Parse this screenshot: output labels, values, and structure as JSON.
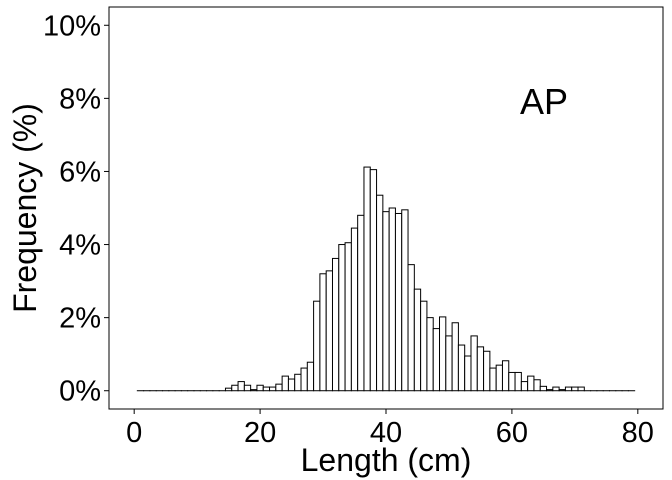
{
  "chart_data": {
    "type": "bar",
    "xlabel": "Length (cm)",
    "ylabel": "Frequency (%)",
    "annotation": "AP",
    "xlim": [
      -4,
      84
    ],
    "ylim": [
      -0.5,
      10.5
    ],
    "xticks": [
      0,
      20,
      40,
      60,
      80
    ],
    "xtick_labels": [
      "0",
      "20",
      "40",
      "60",
      "80"
    ],
    "yticks": [
      0,
      2,
      4,
      6,
      8,
      10
    ],
    "ytick_labels": [
      "0%",
      "2%",
      "4%",
      "6%",
      "8%",
      "10%"
    ],
    "bin_width": 1,
    "bins": [
      {
        "x": 1,
        "y": 0
      },
      {
        "x": 2,
        "y": 0
      },
      {
        "x": 3,
        "y": 0
      },
      {
        "x": 4,
        "y": 0
      },
      {
        "x": 5,
        "y": 0
      },
      {
        "x": 6,
        "y": 0
      },
      {
        "x": 7,
        "y": 0
      },
      {
        "x": 8,
        "y": 0
      },
      {
        "x": 9,
        "y": 0
      },
      {
        "x": 10,
        "y": 0
      },
      {
        "x": 11,
        "y": 0
      },
      {
        "x": 12,
        "y": 0
      },
      {
        "x": 13,
        "y": 0
      },
      {
        "x": 14,
        "y": 0
      },
      {
        "x": 15,
        "y": 0.07
      },
      {
        "x": 16,
        "y": 0.15
      },
      {
        "x": 17,
        "y": 0.25
      },
      {
        "x": 18,
        "y": 0.15
      },
      {
        "x": 19,
        "y": 0.03
      },
      {
        "x": 20,
        "y": 0.15
      },
      {
        "x": 21,
        "y": 0.1
      },
      {
        "x": 22,
        "y": 0.1
      },
      {
        "x": 23,
        "y": 0.18
      },
      {
        "x": 24,
        "y": 0.4
      },
      {
        "x": 25,
        "y": 0.32
      },
      {
        "x": 26,
        "y": 0.45
      },
      {
        "x": 27,
        "y": 0.62
      },
      {
        "x": 28,
        "y": 0.78
      },
      {
        "x": 29,
        "y": 2.45
      },
      {
        "x": 30,
        "y": 3.2
      },
      {
        "x": 31,
        "y": 3.28
      },
      {
        "x": 32,
        "y": 3.62
      },
      {
        "x": 33,
        "y": 4.0
      },
      {
        "x": 34,
        "y": 4.05
      },
      {
        "x": 35,
        "y": 4.45
      },
      {
        "x": 36,
        "y": 4.8
      },
      {
        "x": 37,
        "y": 6.12
      },
      {
        "x": 38,
        "y": 6.05
      },
      {
        "x": 39,
        "y": 5.35
      },
      {
        "x": 40,
        "y": 4.9
      },
      {
        "x": 41,
        "y": 5.0
      },
      {
        "x": 42,
        "y": 4.85
      },
      {
        "x": 43,
        "y": 4.95
      },
      {
        "x": 44,
        "y": 3.45
      },
      {
        "x": 45,
        "y": 2.78
      },
      {
        "x": 46,
        "y": 2.45
      },
      {
        "x": 47,
        "y": 2.0
      },
      {
        "x": 48,
        "y": 1.7
      },
      {
        "x": 49,
        "y": 2.02
      },
      {
        "x": 50,
        "y": 1.5
      },
      {
        "x": 51,
        "y": 1.86
      },
      {
        "x": 52,
        "y": 1.25
      },
      {
        "x": 53,
        "y": 0.95
      },
      {
        "x": 54,
        "y": 1.5
      },
      {
        "x": 55,
        "y": 1.2
      },
      {
        "x": 56,
        "y": 1.08
      },
      {
        "x": 57,
        "y": 0.62
      },
      {
        "x": 58,
        "y": 0.7
      },
      {
        "x": 59,
        "y": 0.82
      },
      {
        "x": 60,
        "y": 0.5
      },
      {
        "x": 61,
        "y": 0.5
      },
      {
        "x": 62,
        "y": 0.25
      },
      {
        "x": 63,
        "y": 0.4
      },
      {
        "x": 64,
        "y": 0.3
      },
      {
        "x": 65,
        "y": 0.12
      },
      {
        "x": 66,
        "y": 0.03
      },
      {
        "x": 67,
        "y": 0.1
      },
      {
        "x": 68,
        "y": 0.03
      },
      {
        "x": 69,
        "y": 0.1
      },
      {
        "x": 70,
        "y": 0.1
      },
      {
        "x": 71,
        "y": 0.1
      },
      {
        "x": 72,
        "y": 0
      },
      {
        "x": 73,
        "y": 0
      },
      {
        "x": 74,
        "y": 0
      },
      {
        "x": 75,
        "y": 0
      },
      {
        "x": 76,
        "y": 0
      },
      {
        "x": 77,
        "y": 0
      },
      {
        "x": 78,
        "y": 0
      },
      {
        "x": 79,
        "y": 0
      }
    ]
  }
}
